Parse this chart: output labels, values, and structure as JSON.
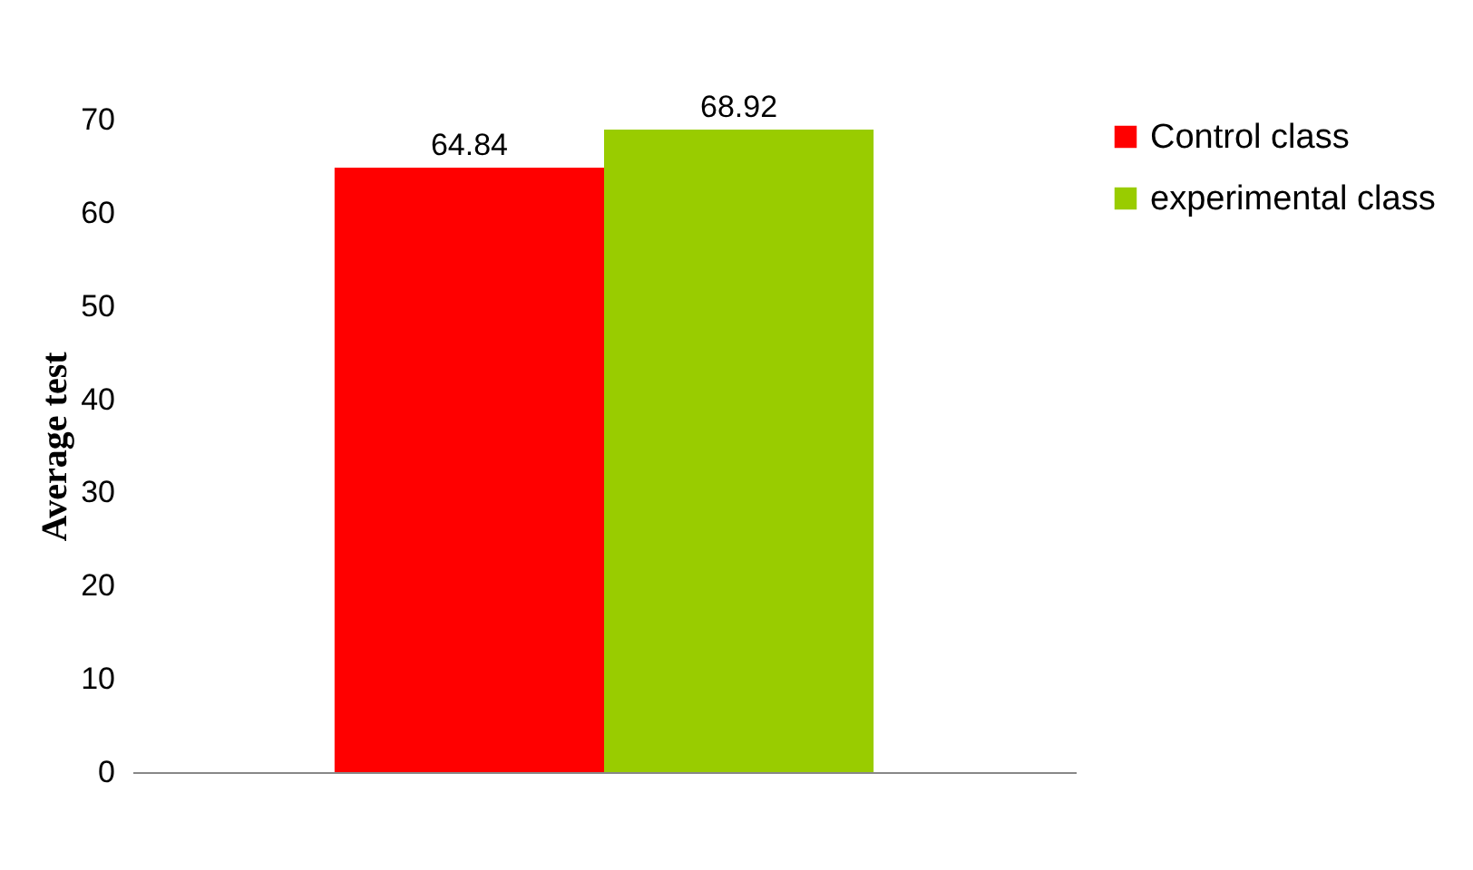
{
  "chart_data": {
    "type": "bar",
    "ylabel": "Average test",
    "categories": [
      null
    ],
    "series": [
      {
        "name": "Control class",
        "color": "#ff0000",
        "values": [
          64.84
        ]
      },
      {
        "name": "experimental class",
        "color": "#99cc00",
        "values": [
          68.92
        ]
      }
    ],
    "ylim": [
      0,
      70
    ],
    "yticks": [
      0,
      10,
      20,
      30,
      40,
      50,
      60,
      70
    ],
    "grid": false,
    "legend": "right",
    "data_labels": true
  }
}
